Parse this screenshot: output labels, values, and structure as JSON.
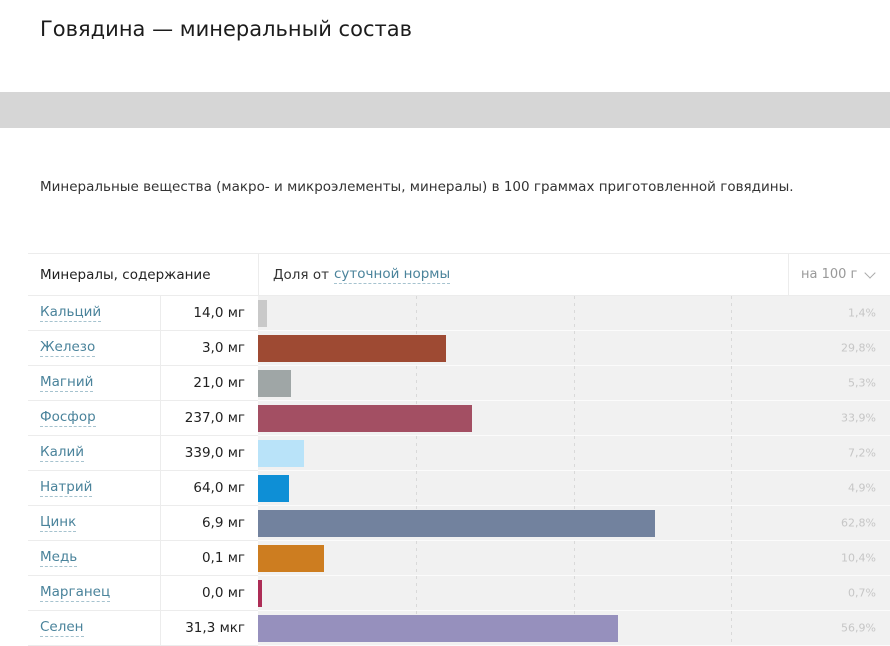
{
  "page": {
    "title": "Говядина — минеральный состав",
    "description": "Минеральные вещества (макро- и микроэлементы, минералы) в 100 граммах приготовленной говядины."
  },
  "table": {
    "col1_header": "Минералы, содержание",
    "col2_header_prefix": "Доля от",
    "col2_header_link": "суточной нормы",
    "unit_label": "на 100 г"
  },
  "rows": [
    {
      "name": "Кальций",
      "amount": "14,0 мг",
      "percent": "1,4%",
      "value": 1.4,
      "color": "#c9c9c9"
    },
    {
      "name": "Железо",
      "amount": "3,0 мг",
      "percent": "29,8%",
      "value": 29.8,
      "color": "#9e4a33"
    },
    {
      "name": "Магний",
      "amount": "21,0 мг",
      "percent": "5,3%",
      "value": 5.3,
      "color": "#9fa6a6"
    },
    {
      "name": "Фосфор",
      "amount": "237,0 мг",
      "percent": "33,9%",
      "value": 33.9,
      "color": "#a34f63"
    },
    {
      "name": "Калий",
      "amount": "339,0 мг",
      "percent": "7,2%",
      "value": 7.2,
      "color": "#b9e3f9"
    },
    {
      "name": "Натрий",
      "amount": "64,0 мг",
      "percent": "4,9%",
      "value": 4.9,
      "color": "#0e8fd6"
    },
    {
      "name": "Цинк",
      "amount": "6,9 мг",
      "percent": "62,8%",
      "value": 62.8,
      "color": "#72829e"
    },
    {
      "name": "Медь",
      "amount": "0,1 мг",
      "percent": "10,4%",
      "value": 10.4,
      "color": "#cd7d20"
    },
    {
      "name": "Марганец",
      "amount": "0,0 мг",
      "percent": "0,7%",
      "value": 0.7,
      "color": "#ad2d56"
    },
    {
      "name": "Селен",
      "amount": "31,3 мкг",
      "percent": "56,9%",
      "value": 56.9,
      "color": "#9690bd"
    }
  ],
  "chart_data": {
    "type": "bar",
    "orientation": "horizontal",
    "title": "Говядина — минеральный состав",
    "categories": [
      "Кальций",
      "Железо",
      "Магний",
      "Фосфор",
      "Калий",
      "Натрий",
      "Цинк",
      "Медь",
      "Марганец",
      "Селен"
    ],
    "amounts_per_100g": [
      "14,0 мг",
      "3,0 мг",
      "21,0 мг",
      "237,0 мг",
      "339,0 мг",
      "64,0 мг",
      "6,9 мг",
      "0,1 мг",
      "0,0 мг",
      "31,3 мкг"
    ],
    "series": [
      {
        "name": "Доля от суточной нормы, %",
        "values": [
          1.4,
          29.8,
          5.3,
          33.9,
          7.2,
          4.9,
          62.8,
          10.4,
          0.7,
          56.9
        ]
      }
    ],
    "xlim": [
      0,
      100
    ],
    "gridlines_at_percent": [
      25,
      50,
      75
    ],
    "legend": "none",
    "value_labels": [
      "1,4%",
      "29,8%",
      "5,3%",
      "33,9%",
      "7,2%",
      "4,9%",
      "62,8%",
      "10,4%",
      "0,7%",
      "56,9%"
    ]
  },
  "colors": {
    "link": "#4a839b",
    "percent_label": "#c6c6c6",
    "bar_track": "#f1f1f1",
    "band": "#d6d6d6"
  }
}
